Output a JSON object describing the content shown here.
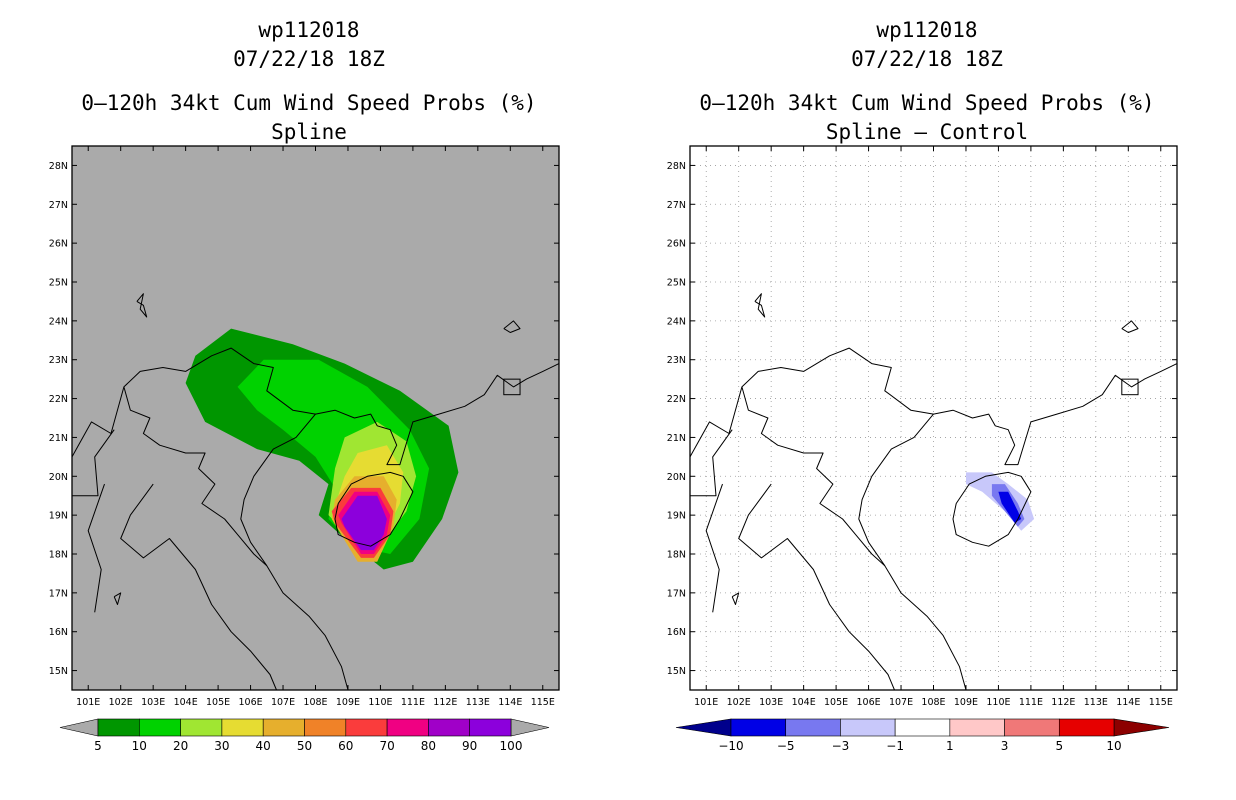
{
  "chart_data": [
    {
      "type": "heatmap",
      "title": "wp112018",
      "date": "07/22/18 18Z",
      "subtitle": "0–120h 34kt Cum Wind Speed Probs (%)",
      "label": "Spline",
      "x_tick_labels": [
        "101E",
        "102E",
        "103E",
        "104E",
        "105E",
        "106E",
        "107E",
        "108E",
        "109E",
        "110E",
        "111E",
        "112E",
        "113E",
        "114E",
        "115E"
      ],
      "y_tick_labels": [
        "15N",
        "16N",
        "17N",
        "18N",
        "19N",
        "20N",
        "21N",
        "22N",
        "23N",
        "24N",
        "25N",
        "26N",
        "27N",
        "28N"
      ],
      "xlim": [
        100.5,
        115.5
      ],
      "ylim": [
        14.5,
        28.5
      ],
      "grid": false,
      "background": "#aaaaaa",
      "colorbar": {
        "labels": [
          "5",
          "10",
          "20",
          "30",
          "40",
          "50",
          "60",
          "70",
          "80",
          "90",
          "100"
        ],
        "colors": [
          "#009600",
          "#00d200",
          "#a0e632",
          "#e6dc32",
          "#e6af2d",
          "#f08228",
          "#fa3c3c",
          "#f00082",
          "#a000c8",
          "#8c00dc"
        ],
        "extend_colors": [
          "#aaaaaa",
          "#aaaaaa"
        ]
      },
      "contours": [
        {
          "level": 5,
          "color": "#009600",
          "points": [
            [
              104.0,
              22.4
            ],
            [
              104.3,
              23.1
            ],
            [
              105.4,
              23.8
            ],
            [
              107.3,
              23.4
            ],
            [
              108.9,
              22.9
            ],
            [
              110.6,
              22.2
            ],
            [
              112.1,
              21.3
            ],
            [
              112.4,
              20.1
            ],
            [
              111.9,
              18.9
            ],
            [
              111.0,
              17.8
            ],
            [
              110.1,
              17.6
            ],
            [
              108.9,
              18.4
            ],
            [
              108.1,
              19.0
            ],
            [
              108.4,
              19.8
            ],
            [
              107.5,
              20.4
            ],
            [
              106.2,
              20.7
            ],
            [
              104.6,
              21.4
            ]
          ]
        },
        {
          "level": 10,
          "color": "#00d200",
          "points": [
            [
              105.6,
              22.3
            ],
            [
              106.4,
              23.0
            ],
            [
              108.1,
              23.0
            ],
            [
              109.6,
              22.3
            ],
            [
              110.9,
              21.2
            ],
            [
              111.5,
              20.2
            ],
            [
              111.2,
              18.9
            ],
            [
              110.3,
              18.0
            ],
            [
              109.2,
              18.2
            ],
            [
              108.4,
              18.9
            ],
            [
              108.6,
              19.7
            ],
            [
              108.0,
              20.5
            ],
            [
              107.0,
              21.2
            ],
            [
              106.2,
              21.7
            ]
          ]
        },
        {
          "level": 20,
          "color": "#a0e632",
          "points": [
            [
              108.6,
              20.2
            ],
            [
              108.9,
              21.0
            ],
            [
              109.9,
              21.4
            ],
            [
              110.8,
              20.9
            ],
            [
              111.1,
              20.0
            ],
            [
              110.8,
              19.1
            ],
            [
              110.0,
              18.2
            ],
            [
              109.1,
              18.4
            ],
            [
              108.4,
              19.0
            ]
          ]
        },
        {
          "level": 30,
          "color": "#e6dc32",
          "points": [
            [
              108.9,
              20.0
            ],
            [
              109.3,
              20.6
            ],
            [
              110.2,
              20.8
            ],
            [
              110.7,
              20.1
            ],
            [
              110.6,
              19.3
            ],
            [
              110.0,
              18.3
            ],
            [
              109.1,
              18.5
            ],
            [
              108.5,
              19.0
            ]
          ]
        },
        {
          "level": 40,
          "color": "#e6af2d",
          "points": [
            [
              108.6,
              19.4
            ],
            [
              109.2,
              20.0
            ],
            [
              110.1,
              20.0
            ],
            [
              110.5,
              19.4
            ],
            [
              110.4,
              18.7
            ],
            [
              109.9,
              17.8
            ],
            [
              109.3,
              17.8
            ],
            [
              108.5,
              18.9
            ]
          ]
        },
        {
          "level": 60,
          "color": "#fa3c3c",
          "points": [
            [
              108.5,
              19.1
            ],
            [
              109.1,
              19.7
            ],
            [
              110.0,
              19.7
            ],
            [
              110.4,
              19.1
            ],
            [
              110.3,
              18.5
            ],
            [
              109.8,
              17.9
            ],
            [
              109.4,
              17.9
            ],
            [
              108.6,
              18.8
            ]
          ]
        },
        {
          "level": 80,
          "color": "#f00082",
          "points": [
            [
              108.7,
              19.0
            ],
            [
              109.2,
              19.6
            ],
            [
              109.9,
              19.6
            ],
            [
              110.3,
              19.0
            ],
            [
              110.2,
              18.5
            ],
            [
              109.8,
              18.0
            ],
            [
              109.4,
              18.0
            ],
            [
              108.8,
              18.8
            ]
          ]
        },
        {
          "level": 100,
          "color": "#8c00dc",
          "points": [
            [
              108.8,
              18.9
            ],
            [
              109.3,
              19.5
            ],
            [
              109.9,
              19.5
            ],
            [
              110.2,
              18.9
            ],
            [
              110.1,
              18.5
            ],
            [
              109.8,
              18.1
            ],
            [
              109.4,
              18.1
            ],
            [
              108.9,
              18.7
            ]
          ]
        }
      ]
    },
    {
      "type": "heatmap",
      "title": "wp112018",
      "date": "07/22/18 18Z",
      "subtitle": "0–120h 34kt Cum Wind Speed Probs (%)",
      "label": "Spline – Control",
      "x_tick_labels": [
        "101E",
        "102E",
        "103E",
        "104E",
        "105E",
        "106E",
        "107E",
        "108E",
        "109E",
        "110E",
        "111E",
        "112E",
        "113E",
        "114E",
        "115E"
      ],
      "y_tick_labels": [
        "15N",
        "16N",
        "17N",
        "18N",
        "19N",
        "20N",
        "21N",
        "22N",
        "23N",
        "24N",
        "25N",
        "26N",
        "27N",
        "28N"
      ],
      "xlim": [
        100.5,
        115.5
      ],
      "ylim": [
        14.5,
        28.5
      ],
      "grid": true,
      "background": "#ffffff",
      "colorbar": {
        "labels": [
          "−10",
          "−5",
          "−3",
          "−1",
          "1",
          "3",
          "5",
          "10"
        ],
        "colors": [
          "#0000e6",
          "#7878f0",
          "#c8c8fa",
          "#ffffff",
          "#ffc8c8",
          "#f07878",
          "#e60000"
        ],
        "extend_colors": [
          "#00008c",
          "#8c0000"
        ]
      },
      "contours": [
        {
          "level": -1,
          "color": "#c8c8fa",
          "points": [
            [
              109.0,
              20.1
            ],
            [
              109.8,
              20.1
            ],
            [
              110.3,
              19.8
            ],
            [
              110.9,
              19.4
            ],
            [
              111.1,
              18.9
            ],
            [
              110.7,
              18.6
            ],
            [
              110.2,
              19.1
            ],
            [
              109.5,
              19.6
            ],
            [
              109.0,
              19.8
            ]
          ]
        },
        {
          "level": -3,
          "color": "#7878f0",
          "points": [
            [
              109.8,
              19.8
            ],
            [
              110.2,
              19.8
            ],
            [
              110.6,
              19.3
            ],
            [
              110.8,
              18.9
            ],
            [
              110.6,
              18.7
            ],
            [
              110.1,
              19.2
            ],
            [
              109.8,
              19.5
            ]
          ]
        },
        {
          "level": -5,
          "color": "#0000e6",
          "points": [
            [
              110.0,
              19.6
            ],
            [
              110.3,
              19.6
            ],
            [
              110.6,
              19.1
            ],
            [
              110.7,
              18.9
            ],
            [
              110.5,
              18.8
            ],
            [
              110.1,
              19.3
            ]
          ]
        }
      ]
    }
  ]
}
